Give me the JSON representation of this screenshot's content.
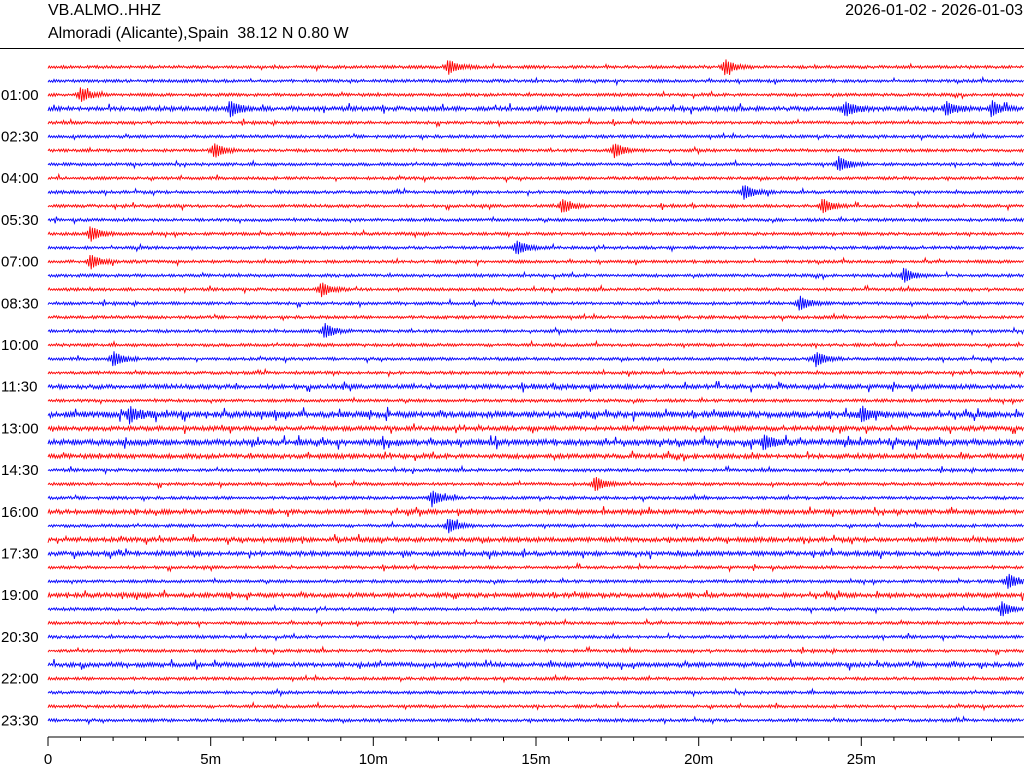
{
  "header": {
    "station": "VB.ALMO..HHZ",
    "location": "Almoradi (Alicante),Spain  38.12 N 0.80 W",
    "date_range": "2026-01-02 - 2026-01-03"
  },
  "chart_data": {
    "type": "line",
    "title": "VB.ALMO..HHZ",
    "subtitle": "Almoradi (Alicante),Spain  38.12 N 0.80 W",
    "date_range": "2026-01-02 - 2026-01-03",
    "plot_type": "helicorder (multi-line seismogram)",
    "rows_per_day": 48,
    "minutes_per_row": 30,
    "first_row_start": "00:00",
    "row_colors": [
      "#ff0000",
      "#0000ff"
    ],
    "y_tick_labels": [
      "01:00",
      "02:30",
      "04:00",
      "05:30",
      "07:00",
      "08:30",
      "10:00",
      "11:30",
      "13:00",
      "14:30",
      "16:00",
      "17:30",
      "19:00",
      "20:30",
      "22:00",
      "23:30"
    ],
    "y_tick_rows": [
      2,
      5,
      8,
      11,
      14,
      17,
      20,
      23,
      26,
      29,
      32,
      35,
      38,
      41,
      44,
      47
    ],
    "x_ticks": [
      0,
      5,
      10,
      15,
      20,
      25
    ],
    "x_tick_labels": [
      "0",
      "5m",
      "10m",
      "15m",
      "20m",
      "25m"
    ],
    "x_unit": "minutes",
    "xlim": [
      0,
      30
    ],
    "row_activity": [
      1,
      1,
      1,
      2,
      1,
      1,
      1,
      1,
      1,
      1,
      1,
      1,
      1,
      1,
      1,
      1,
      1,
      1,
      1,
      1,
      1,
      1,
      1,
      2,
      1,
      3,
      2,
      3,
      2,
      1,
      1,
      1,
      2,
      1,
      2,
      2,
      1,
      1,
      2,
      1,
      1,
      1,
      1,
      2,
      1,
      1,
      1,
      1
    ],
    "events": [
      {
        "row": 0,
        "minute": 12.3
      },
      {
        "row": 0,
        "minute": 20.8
      },
      {
        "row": 2,
        "minute": 1.0
      },
      {
        "row": 3,
        "minute": 5.6
      },
      {
        "row": 3,
        "minute": 24.5
      },
      {
        "row": 3,
        "minute": 27.6
      },
      {
        "row": 3,
        "minute": 29.0
      },
      {
        "row": 6,
        "minute": 5.1
      },
      {
        "row": 6,
        "minute": 17.4
      },
      {
        "row": 7,
        "minute": 24.3
      },
      {
        "row": 9,
        "minute": 21.4
      },
      {
        "row": 10,
        "minute": 15.8
      },
      {
        "row": 10,
        "minute": 23.8
      },
      {
        "row": 12,
        "minute": 1.3
      },
      {
        "row": 13,
        "minute": 14.4
      },
      {
        "row": 14,
        "minute": 1.3
      },
      {
        "row": 15,
        "minute": 26.3
      },
      {
        "row": 16,
        "minute": 8.4
      },
      {
        "row": 17,
        "minute": 23.1
      },
      {
        "row": 19,
        "minute": 8.5
      },
      {
        "row": 21,
        "minute": 2.0
      },
      {
        "row": 21,
        "minute": 23.6
      },
      {
        "row": 25,
        "minute": 2.5
      },
      {
        "row": 25,
        "minute": 25.0
      },
      {
        "row": 27,
        "minute": 22.0
      },
      {
        "row": 30,
        "minute": 16.8
      },
      {
        "row": 31,
        "minute": 11.8
      },
      {
        "row": 33,
        "minute": 12.3
      },
      {
        "row": 37,
        "minute": 29.5
      },
      {
        "row": 39,
        "minute": 29.3
      }
    ]
  }
}
